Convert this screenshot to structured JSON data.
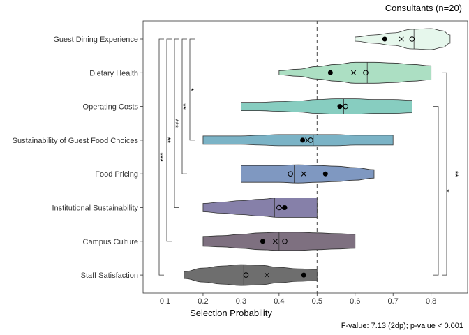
{
  "chart_data": {
    "type": "violin",
    "title": "Consultants (n=20)",
    "xlabel": "Selection Probability",
    "ylabel": "",
    "footnote": "F-value: 7.13 (2dp); p-value < 0.001",
    "xlim": [
      0.045,
      0.86
    ],
    "xticks": [
      "0.1",
      "0.2",
      "0.3",
      "0.4",
      "0.5",
      "0.6",
      "0.7",
      "0.8"
    ],
    "reference_line": 0.5,
    "categories": [
      "Guest Dining Experience",
      "Dietary Health",
      "Operating Costs",
      "Sustainability of Guest Food Choices",
      "Food Pricing",
      "Institutional Sustainability",
      "Campus Culture",
      "Staff Satisfaction"
    ],
    "series": [
      {
        "category": "Guest Dining Experience",
        "color": "#e6f7ec",
        "min": 0.6,
        "max": 0.85,
        "median": 0.755,
        "filled_dot": 0.678,
        "cross": 0.722,
        "open_circle": 0.75,
        "profile": [
          [
            0.6,
            3
          ],
          [
            0.65,
            6
          ],
          [
            0.7,
            9
          ],
          [
            0.75,
            14
          ],
          [
            0.8,
            15
          ],
          [
            0.83,
            12
          ],
          [
            0.85,
            6
          ]
        ]
      },
      {
        "category": "Dietary Health",
        "color": "#acdfc3",
        "min": 0.4,
        "max": 0.8,
        "median": 0.632,
        "filled_dot": 0.535,
        "cross": 0.596,
        "open_circle": 0.628,
        "profile": [
          [
            0.4,
            3
          ],
          [
            0.45,
            5
          ],
          [
            0.5,
            9
          ],
          [
            0.55,
            12
          ],
          [
            0.6,
            15
          ],
          [
            0.65,
            15
          ],
          [
            0.7,
            14
          ],
          [
            0.75,
            12
          ],
          [
            0.8,
            10
          ]
        ]
      },
      {
        "category": "Operating Costs",
        "color": "#87cdc0",
        "min": 0.3,
        "max": 0.75,
        "median": 0.57,
        "filled_dot": 0.56,
        "cross": 0.567,
        "open_circle": 0.575,
        "profile": [
          [
            0.3,
            6
          ],
          [
            0.35,
            6
          ],
          [
            0.4,
            7
          ],
          [
            0.45,
            8
          ],
          [
            0.5,
            10
          ],
          [
            0.55,
            11
          ],
          [
            0.6,
            11
          ],
          [
            0.65,
            10
          ],
          [
            0.7,
            10
          ],
          [
            0.75,
            9
          ]
        ]
      },
      {
        "category": "Sustainability of Guest Food Choices",
        "color": "#7bb3c6",
        "min": 0.2,
        "max": 0.7,
        "median": 0.49,
        "filled_dot": 0.462,
        "cross": 0.475,
        "open_circle": 0.483,
        "profile": [
          [
            0.2,
            6
          ],
          [
            0.25,
            6
          ],
          [
            0.3,
            6
          ],
          [
            0.35,
            7
          ],
          [
            0.4,
            8
          ],
          [
            0.45,
            8
          ],
          [
            0.5,
            8
          ],
          [
            0.55,
            8
          ],
          [
            0.6,
            7
          ],
          [
            0.65,
            7
          ],
          [
            0.7,
            7
          ]
        ]
      },
      {
        "category": "Food Pricing",
        "color": "#7f98c1",
        "min": 0.3,
        "max": 0.65,
        "median": 0.44,
        "filled_dot": 0.522,
        "cross": 0.465,
        "open_circle": 0.43,
        "profile": [
          [
            0.3,
            12
          ],
          [
            0.35,
            12
          ],
          [
            0.4,
            12
          ],
          [
            0.45,
            13
          ],
          [
            0.5,
            12
          ],
          [
            0.55,
            11
          ],
          [
            0.6,
            9
          ],
          [
            0.65,
            6
          ]
        ]
      },
      {
        "category": "Institutional Sustainability",
        "color": "#8680a9",
        "min": 0.2,
        "max": 0.5,
        "median": 0.388,
        "filled_dot": 0.415,
        "cross": 0.407,
        "open_circle": 0.4,
        "profile": [
          [
            0.2,
            6
          ],
          [
            0.25,
            8
          ],
          [
            0.3,
            10
          ],
          [
            0.35,
            12
          ],
          [
            0.4,
            14
          ],
          [
            0.45,
            14
          ],
          [
            0.5,
            14
          ]
        ]
      },
      {
        "category": "Campus Culture",
        "color": "#7e7080",
        "min": 0.2,
        "max": 0.6,
        "median": 0.4,
        "filled_dot": 0.357,
        "cross": 0.39,
        "open_circle": 0.415,
        "profile": [
          [
            0.2,
            7
          ],
          [
            0.25,
            8
          ],
          [
            0.3,
            10
          ],
          [
            0.35,
            12
          ],
          [
            0.4,
            13
          ],
          [
            0.45,
            13
          ],
          [
            0.5,
            12
          ],
          [
            0.55,
            11
          ],
          [
            0.6,
            10
          ]
        ]
      },
      {
        "category": "Staff Satisfaction",
        "color": "#6e6e6e",
        "min": 0.15,
        "max": 0.5,
        "median": 0.307,
        "filled_dot": 0.465,
        "cross": 0.368,
        "open_circle": 0.313,
        "profile": [
          [
            0.15,
            5
          ],
          [
            0.2,
            10
          ],
          [
            0.25,
            13
          ],
          [
            0.3,
            15
          ],
          [
            0.35,
            14
          ],
          [
            0.4,
            11
          ],
          [
            0.45,
            9
          ],
          [
            0.5,
            8
          ]
        ]
      }
    ],
    "brackets_left": [
      {
        "from": "Guest Dining Experience",
        "to": "Staff Satisfaction",
        "label": "***"
      },
      {
        "from": "Guest Dining Experience",
        "to": "Campus Culture",
        "label": "**"
      },
      {
        "from": "Guest Dining Experience",
        "to": "Institutional Sustainability",
        "label": "***"
      },
      {
        "from": "Guest Dining Experience",
        "to": "Food Pricing",
        "label": "**"
      },
      {
        "from": "Guest Dining Experience",
        "to": "Sustainability of Guest Food Choices",
        "label": "*"
      }
    ],
    "brackets_right": [
      {
        "from": "Dietary Health",
        "to": "Staff Satisfaction",
        "label": "**"
      },
      {
        "from": "Operating Costs",
        "to": "Staff Satisfaction",
        "label": "*"
      }
    ]
  }
}
